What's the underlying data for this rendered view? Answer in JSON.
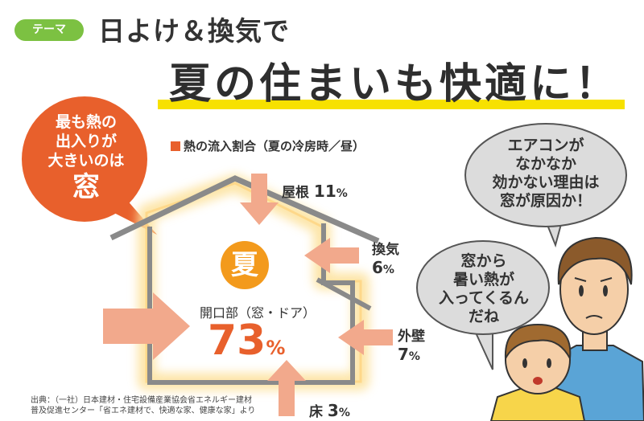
{
  "header": {
    "theme_badge": "テーマ",
    "subtitle": "日よけ＆換気で",
    "title": "夏の住まいも快適に！"
  },
  "legend": {
    "label": "熱の流入割合（夏の冷房時／昼）"
  },
  "callout": {
    "line1": "最も熱の",
    "line2": "出入りが",
    "line3": "大きいのは",
    "emphasis": "窓"
  },
  "house": {
    "season_label": "夏"
  },
  "heat_inflow": {
    "roof": {
      "label": "屋根",
      "value": "11",
      "unit": "%"
    },
    "ventilation": {
      "label": "換気",
      "value": "6",
      "unit": "%"
    },
    "opening": {
      "label": "開口部（窓・ドア）",
      "value": "73",
      "unit": "%"
    },
    "wall": {
      "label": "外壁",
      "value": "7",
      "unit": "%"
    },
    "floor": {
      "label": "床",
      "value": "3",
      "unit": "%"
    }
  },
  "speech": {
    "father": {
      "line1": "エアコンが",
      "line2": "なかなか",
      "line3": "効かない理由は",
      "line4": "窓が原因か！"
    },
    "child": {
      "line1": "窓から",
      "line2": "暑い熱が",
      "line3": "入ってくるん",
      "line4": "だね"
    }
  },
  "source": {
    "line1": "出典：（一社）日本建材・住宅設備産業協会省エネルギー建材",
    "line2": "普及促進センター「省エネ建材で、快適な家、健康な家」より"
  },
  "colors": {
    "accent": "#e8602c",
    "arrow": "#f2a98c",
    "glow": "#fde3a0",
    "badge": "#7cc142",
    "highlight": "#f7e100"
  }
}
